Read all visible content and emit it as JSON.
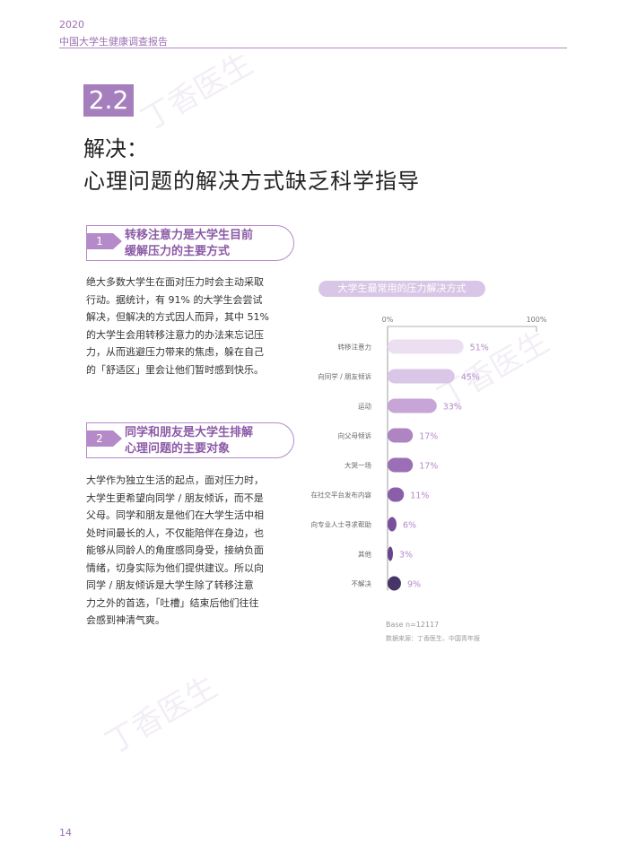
{
  "header": {
    "year": "2020",
    "title": "中国大学生健康调查报告"
  },
  "section": {
    "number": "2.2",
    "title_line1": "解决：",
    "title_line2": "心理问题的解决方式缺乏科学指导"
  },
  "blocks": [
    {
      "num": "1",
      "heading_l1": "转移注意力是大学生目前",
      "heading_l2": "缓解压力的主要方式",
      "lines": [
        "绝大多数大学生在面对压力时会主动采取",
        "行动。据统计，有 91% 的大学生会尝试",
        "解决，但解决的方式因人而异，其中 51%",
        "的大学生会用转移注意力的办法来忘记压",
        "力，从而逃避压力带来的焦虑，躲在自己",
        "的「舒适区」里会让他们暂时感到快乐。"
      ]
    },
    {
      "num": "2",
      "heading_l1": "同学和朋友是大学生排解",
      "heading_l2": "心理问题的主要对象",
      "lines": [
        "大学作为独立生活的起点，面对压力时，",
        "大学生更希望向同学 / 朋友倾诉，而不是",
        "父母。同学和朋友是他们在大学生活中相",
        "处时间最长的人，不仅能陪伴在身边，也",
        "能够从同龄人的角度感同身受，接纳负面",
        "情绪，切身实际为他们提供建议。所以向",
        "同学 / 朋友倾诉是大学生除了转移注意",
        "力之外的首选，「吐槽」结束后他们往往",
        "会感到神清气爽。"
      ]
    }
  ],
  "chart_data": {
    "type": "bar",
    "orientation": "horizontal",
    "title": "大学生最常用的压力解决方式",
    "axis_labels": [
      "0%",
      "100%"
    ],
    "xlim": [
      0,
      100
    ],
    "categories": [
      "转移注意力",
      "向同学 / 朋友倾诉",
      "运动",
      "向父母倾诉",
      "大哭一场",
      "在社交平台发布内容",
      "向专业人士寻求帮助",
      "其他",
      "不解决"
    ],
    "values": [
      51,
      45,
      33,
      17,
      17,
      11,
      6,
      3,
      9
    ],
    "value_labels": [
      "51%",
      "45%",
      "33%",
      "17%",
      "17%",
      "11%",
      "6%",
      "3%",
      "9%"
    ],
    "colors": [
      "#ecdff2",
      "#dac6e6",
      "#c7a5d6",
      "#ae85c2",
      "#9a6fb6",
      "#8a5ea9",
      "#7a4f9c",
      "#6a4390",
      "#463667"
    ],
    "label_color": "#b58ac8"
  },
  "chart_notes": {
    "base": "Base n=12117",
    "source": "数据来源：丁香医生、中国青年报"
  },
  "watermark": "丁香医生",
  "page_number": "14"
}
